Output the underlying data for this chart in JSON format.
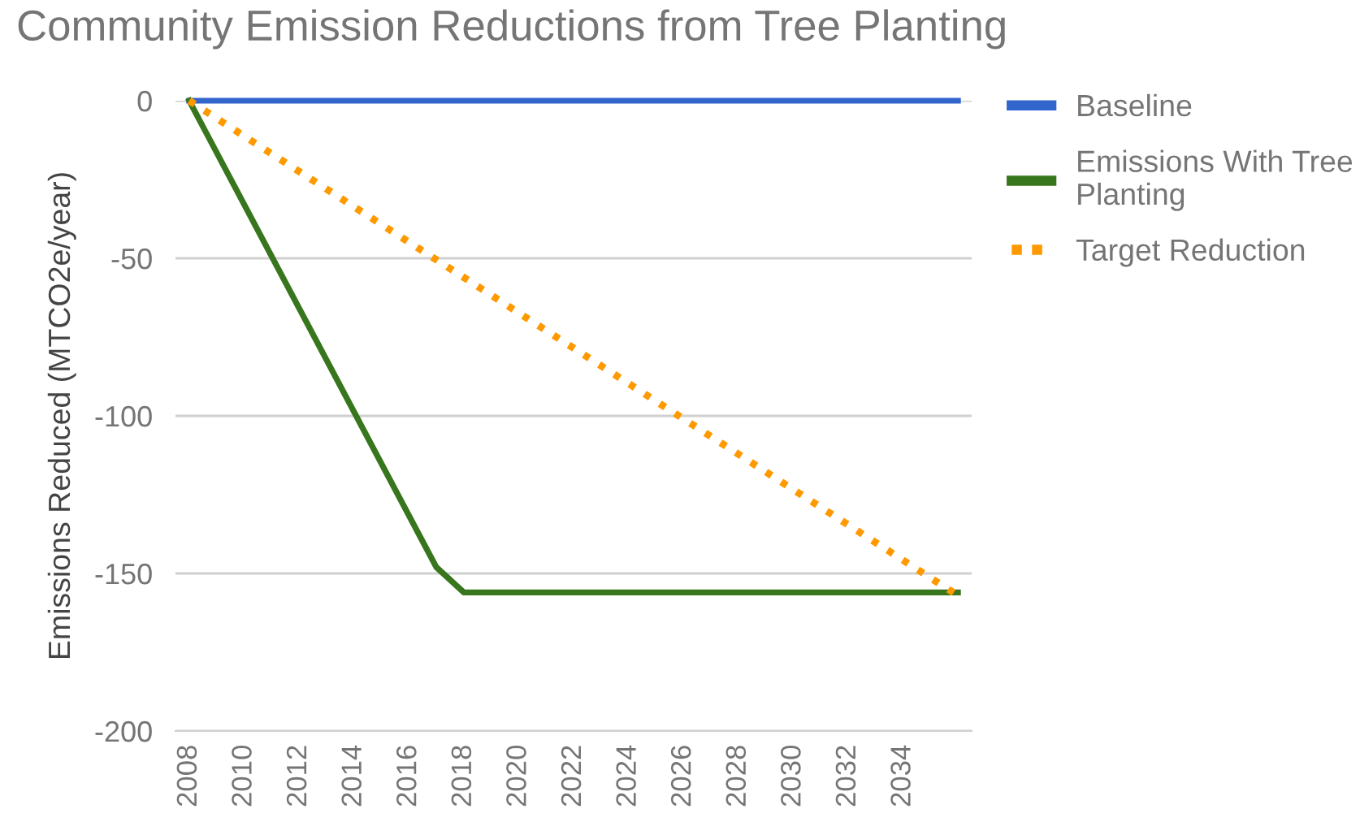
{
  "chart_data": {
    "type": "line",
    "title": "Community Emission Reductions from Tree Planting",
    "ylabel": "Emissions Reduced (MTCO2e/year)",
    "xlim": [
      2007.5,
      2036.5
    ],
    "xticks": [
      2008,
      2010,
      2012,
      2014,
      2016,
      2018,
      2020,
      2022,
      2024,
      2026,
      2028,
      2030,
      2032,
      2034
    ],
    "ylim": [
      -200,
      0
    ],
    "yticks": [
      -200,
      -150,
      -100,
      -50,
      0
    ],
    "grid": "y",
    "legend": "right",
    "series": [
      {
        "name": "Baseline",
        "color": "#3366cc",
        "x": [
          2008,
          2036
        ],
        "values": [
          0,
          0
        ]
      },
      {
        "name": "Emissions With Tree Planting",
        "color": "#38761d",
        "x": [
          2008,
          2017,
          2018,
          2036
        ],
        "values": [
          0,
          -148,
          -156,
          -156
        ]
      },
      {
        "name": "Target Reduction",
        "color": "#ff9900",
        "line_style": "dotted",
        "x": [
          2008,
          2036
        ],
        "values": [
          0,
          -157
        ]
      }
    ]
  }
}
